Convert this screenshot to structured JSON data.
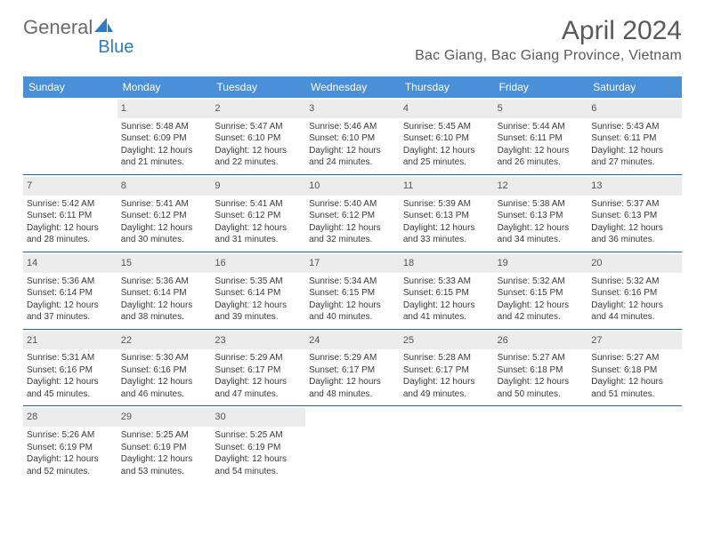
{
  "brand": {
    "part1": "General",
    "part2": "Blue"
  },
  "title": {
    "month_year": "April 2024",
    "location": "Bac Giang, Bac Giang Province, Vietnam"
  },
  "colors": {
    "header_bg": "#4a90d9",
    "header_text": "#ffffff",
    "daynum_bg": "#ececec",
    "daynum_text": "#555555",
    "week_border": "#2f5f8f",
    "body_text": "#3a3a3a",
    "brand_gray": "#6a6a6a",
    "brand_blue": "#2f7bbf",
    "title_text": "#5a5a5a"
  },
  "typography": {
    "title_fontsize": 30,
    "location_fontsize": 16,
    "weekday_fontsize": 12,
    "daynum_fontsize": 11,
    "body_fontsize": 10
  },
  "weekdays": [
    "Sunday",
    "Monday",
    "Tuesday",
    "Wednesday",
    "Thursday",
    "Friday",
    "Saturday"
  ],
  "weeks": [
    [
      {
        "empty": true
      },
      {
        "num": "1",
        "sunrise": "Sunrise: 5:48 AM",
        "sunset": "Sunset: 6:09 PM",
        "daylight": "Daylight: 12 hours and 21 minutes."
      },
      {
        "num": "2",
        "sunrise": "Sunrise: 5:47 AM",
        "sunset": "Sunset: 6:10 PM",
        "daylight": "Daylight: 12 hours and 22 minutes."
      },
      {
        "num": "3",
        "sunrise": "Sunrise: 5:46 AM",
        "sunset": "Sunset: 6:10 PM",
        "daylight": "Daylight: 12 hours and 24 minutes."
      },
      {
        "num": "4",
        "sunrise": "Sunrise: 5:45 AM",
        "sunset": "Sunset: 6:10 PM",
        "daylight": "Daylight: 12 hours and 25 minutes."
      },
      {
        "num": "5",
        "sunrise": "Sunrise: 5:44 AM",
        "sunset": "Sunset: 6:11 PM",
        "daylight": "Daylight: 12 hours and 26 minutes."
      },
      {
        "num": "6",
        "sunrise": "Sunrise: 5:43 AM",
        "sunset": "Sunset: 6:11 PM",
        "daylight": "Daylight: 12 hours and 27 minutes."
      }
    ],
    [
      {
        "num": "7",
        "sunrise": "Sunrise: 5:42 AM",
        "sunset": "Sunset: 6:11 PM",
        "daylight": "Daylight: 12 hours and 28 minutes."
      },
      {
        "num": "8",
        "sunrise": "Sunrise: 5:41 AM",
        "sunset": "Sunset: 6:12 PM",
        "daylight": "Daylight: 12 hours and 30 minutes."
      },
      {
        "num": "9",
        "sunrise": "Sunrise: 5:41 AM",
        "sunset": "Sunset: 6:12 PM",
        "daylight": "Daylight: 12 hours and 31 minutes."
      },
      {
        "num": "10",
        "sunrise": "Sunrise: 5:40 AM",
        "sunset": "Sunset: 6:12 PM",
        "daylight": "Daylight: 12 hours and 32 minutes."
      },
      {
        "num": "11",
        "sunrise": "Sunrise: 5:39 AM",
        "sunset": "Sunset: 6:13 PM",
        "daylight": "Daylight: 12 hours and 33 minutes."
      },
      {
        "num": "12",
        "sunrise": "Sunrise: 5:38 AM",
        "sunset": "Sunset: 6:13 PM",
        "daylight": "Daylight: 12 hours and 34 minutes."
      },
      {
        "num": "13",
        "sunrise": "Sunrise: 5:37 AM",
        "sunset": "Sunset: 6:13 PM",
        "daylight": "Daylight: 12 hours and 36 minutes."
      }
    ],
    [
      {
        "num": "14",
        "sunrise": "Sunrise: 5:36 AM",
        "sunset": "Sunset: 6:14 PM",
        "daylight": "Daylight: 12 hours and 37 minutes."
      },
      {
        "num": "15",
        "sunrise": "Sunrise: 5:36 AM",
        "sunset": "Sunset: 6:14 PM",
        "daylight": "Daylight: 12 hours and 38 minutes."
      },
      {
        "num": "16",
        "sunrise": "Sunrise: 5:35 AM",
        "sunset": "Sunset: 6:14 PM",
        "daylight": "Daylight: 12 hours and 39 minutes."
      },
      {
        "num": "17",
        "sunrise": "Sunrise: 5:34 AM",
        "sunset": "Sunset: 6:15 PM",
        "daylight": "Daylight: 12 hours and 40 minutes."
      },
      {
        "num": "18",
        "sunrise": "Sunrise: 5:33 AM",
        "sunset": "Sunset: 6:15 PM",
        "daylight": "Daylight: 12 hours and 41 minutes."
      },
      {
        "num": "19",
        "sunrise": "Sunrise: 5:32 AM",
        "sunset": "Sunset: 6:15 PM",
        "daylight": "Daylight: 12 hours and 42 minutes."
      },
      {
        "num": "20",
        "sunrise": "Sunrise: 5:32 AM",
        "sunset": "Sunset: 6:16 PM",
        "daylight": "Daylight: 12 hours and 44 minutes."
      }
    ],
    [
      {
        "num": "21",
        "sunrise": "Sunrise: 5:31 AM",
        "sunset": "Sunset: 6:16 PM",
        "daylight": "Daylight: 12 hours and 45 minutes."
      },
      {
        "num": "22",
        "sunrise": "Sunrise: 5:30 AM",
        "sunset": "Sunset: 6:16 PM",
        "daylight": "Daylight: 12 hours and 46 minutes."
      },
      {
        "num": "23",
        "sunrise": "Sunrise: 5:29 AM",
        "sunset": "Sunset: 6:17 PM",
        "daylight": "Daylight: 12 hours and 47 minutes."
      },
      {
        "num": "24",
        "sunrise": "Sunrise: 5:29 AM",
        "sunset": "Sunset: 6:17 PM",
        "daylight": "Daylight: 12 hours and 48 minutes."
      },
      {
        "num": "25",
        "sunrise": "Sunrise: 5:28 AM",
        "sunset": "Sunset: 6:17 PM",
        "daylight": "Daylight: 12 hours and 49 minutes."
      },
      {
        "num": "26",
        "sunrise": "Sunrise: 5:27 AM",
        "sunset": "Sunset: 6:18 PM",
        "daylight": "Daylight: 12 hours and 50 minutes."
      },
      {
        "num": "27",
        "sunrise": "Sunrise: 5:27 AM",
        "sunset": "Sunset: 6:18 PM",
        "daylight": "Daylight: 12 hours and 51 minutes."
      }
    ],
    [
      {
        "num": "28",
        "sunrise": "Sunrise: 5:26 AM",
        "sunset": "Sunset: 6:19 PM",
        "daylight": "Daylight: 12 hours and 52 minutes."
      },
      {
        "num": "29",
        "sunrise": "Sunrise: 5:25 AM",
        "sunset": "Sunset: 6:19 PM",
        "daylight": "Daylight: 12 hours and 53 minutes."
      },
      {
        "num": "30",
        "sunrise": "Sunrise: 5:25 AM",
        "sunset": "Sunset: 6:19 PM",
        "daylight": "Daylight: 12 hours and 54 minutes."
      },
      {
        "empty": true
      },
      {
        "empty": true
      },
      {
        "empty": true
      },
      {
        "empty": true
      }
    ]
  ]
}
